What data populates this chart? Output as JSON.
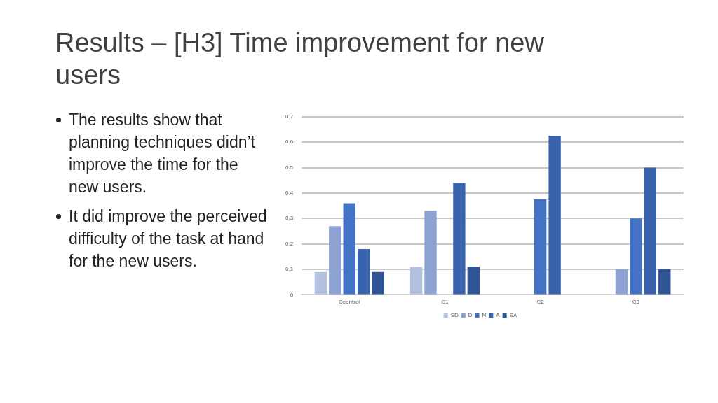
{
  "chart_data": {
    "type": "bar",
    "title": "Results – [H3] Time improvement for new users",
    "annotations": [
      "The results show that planning techniques didn’t improve the time for the new users.",
      "It did improve the perceived difficulty of the task at hand for the new users."
    ],
    "categories": [
      "Ccontrol",
      "C1",
      "C2",
      "C3"
    ],
    "series": [
      {
        "name": "SD",
        "color": "#b4c0e0",
        "values": [
          0.09,
          0.11,
          0,
          0
        ]
      },
      {
        "name": "D",
        "color": "#8fa2d4",
        "values": [
          0.27,
          0.33,
          0,
          0.1
        ]
      },
      {
        "name": "N",
        "color": "#4472c4",
        "values": [
          0.36,
          0,
          0.375,
          0.3
        ]
      },
      {
        "name": "A",
        "color": "#3a63ad",
        "values": [
          0.18,
          0.44,
          0.625,
          0.5
        ]
      },
      {
        "name": "SA",
        "color": "#2f5597",
        "values": [
          0.09,
          0.11,
          0,
          0.1
        ]
      }
    ],
    "ylim": [
      0,
      0.7
    ],
    "yticks": [
      0,
      0.1,
      0.2,
      0.3,
      0.4,
      0.5,
      0.6,
      0.7
    ],
    "grid": "y",
    "legend": "bottom"
  }
}
